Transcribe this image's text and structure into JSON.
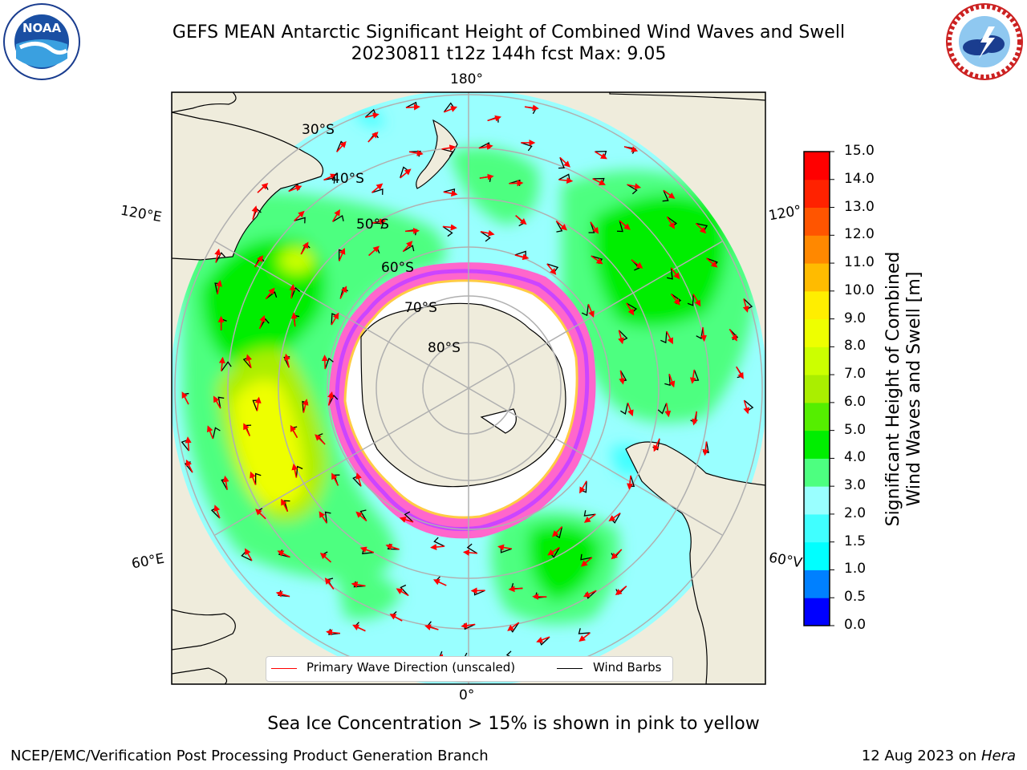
{
  "header": {
    "title_line1": "GEFS MEAN Antarctic Significant Height of Combined Wind Waves and Swell",
    "title_line2": "20230811 t12z 144h fcst   Max: 9.05",
    "left_logo": "noaa-logo",
    "right_logo": "national-weather-service-logo"
  },
  "map": {
    "projection": "south-polar-stereographic",
    "longitude_labels": {
      "top": "180°",
      "upper_left": "120°E",
      "upper_right": "120°",
      "lower_left": "60°E",
      "lower_right": "60°V",
      "bottom": "0°"
    },
    "latitude_labels": [
      "30°S",
      "40°S",
      "50°S",
      "60°S",
      "70°S",
      "80°S"
    ],
    "colors": {
      "land": "#efecdc",
      "sea_ice_free": "#ffffff",
      "sea_ice": [
        "#ff66cc",
        "#cc44ff",
        "#ffcc44"
      ],
      "gridlines": "#b0b0b0",
      "wave_arrow": "#ff0000",
      "wind_barb": "#000000"
    },
    "legend": {
      "wave_label": "Primary Wave Direction (unscaled)",
      "wind_label": "Wind Barbs"
    }
  },
  "colorbar": {
    "title_line1": "Significant Height of Combined",
    "title_line2": "Wind Waves and Swell [m]",
    "ticks": [
      "0.0",
      "0.5",
      "1.0",
      "1.5",
      "2.0",
      "3.0",
      "4.0",
      "5.0",
      "6.0",
      "7.0",
      "8.0",
      "9.0",
      "10.0",
      "11.0",
      "12.0",
      "13.0",
      "14.0",
      "15.0"
    ],
    "colors": [
      "#0000ff",
      "#0080ff",
      "#00ffff",
      "#40ffff",
      "#99ffff",
      "#4dff80",
      "#00ee00",
      "#55ee00",
      "#aaee00",
      "#ccff00",
      "#eeff00",
      "#ffee00",
      "#ffbb00",
      "#ff8800",
      "#ff5500",
      "#ff2200",
      "#ff0000"
    ]
  },
  "notes": {
    "sea_ice": "Sea Ice Concentration > 15% is shown in pink to yellow"
  },
  "footer": {
    "left": "NCEP/EMC/Verification Post Processing Product Generation Branch",
    "right_prefix": "12 Aug 2023 on ",
    "right_machine": "Hera"
  }
}
